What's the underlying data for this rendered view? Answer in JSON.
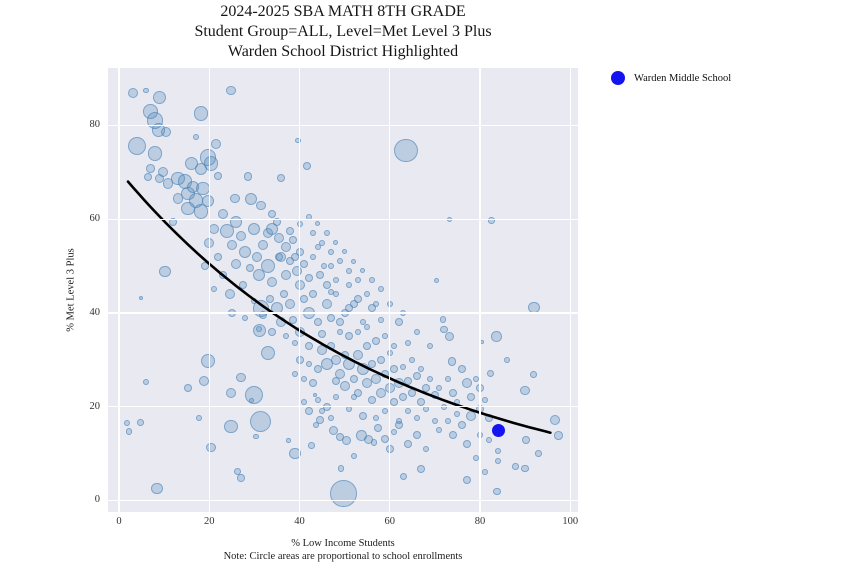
{
  "title": {
    "line1": "2024-2025 SBA MATH 8TH GRADE",
    "line2": "Student Group=ALL, Level=Met Level 3 Plus",
    "line3": "Warden School District Highlighted"
  },
  "legend": {
    "items": [
      {
        "label": "Warden Middle School",
        "color": "#1414f0"
      }
    ]
  },
  "chart_data": {
    "type": "scatter",
    "title": "2024-2025 SBA MATH 8TH GRADE | Student Group=ALL, Level=Met Level 3 Plus | Warden School District Highlighted",
    "xlabel": "% Low Income Students",
    "ylabel": "% Met Level 3 Plus",
    "note": "Note: Circle areas are proportional to school enrollments",
    "xticks": [
      0,
      20,
      40,
      60,
      80,
      100
    ],
    "yticks": [
      0,
      20,
      40,
      60,
      80
    ],
    "xlim": [
      -2.4,
      101.7
    ],
    "ylim": [
      -2.5,
      92.2
    ],
    "grid": true,
    "background": "#e9e9f1",
    "point_color": "#4682b4",
    "legend_position": "outside upper right",
    "highlight": {
      "label": "Warden Middle School",
      "x": 84,
      "y": 15,
      "r": 6.5,
      "color": "#1414f0"
    },
    "trend_line": {
      "type": "exponential",
      "formula": "y = 70.3 * exp(-0.01655 * x)",
      "a": 70.3,
      "b": 0.01655,
      "x_start": 2,
      "x_end": 95.7,
      "color": "#000000",
      "width": 2.6
    },
    "points": [
      [
        3,
        87,
        5
      ],
      [
        6,
        87.5,
        2.7
      ],
      [
        9,
        86,
        6.7
      ],
      [
        7,
        83,
        7.3
      ],
      [
        8,
        81,
        8.3
      ],
      [
        8.7,
        79,
        6.7
      ],
      [
        10.5,
        78.5,
        5
      ],
      [
        4,
        75.7,
        9
      ],
      [
        18.2,
        82.5,
        7.3
      ],
      [
        24.8,
        87.4,
        4.7
      ],
      [
        21.5,
        76,
        5
      ],
      [
        17,
        77.5,
        3
      ],
      [
        39.7,
        76.8,
        2.7
      ],
      [
        63.6,
        74.6,
        11.7
      ],
      [
        8,
        74,
        7.3
      ],
      [
        7,
        70.8,
        4.3
      ],
      [
        6.4,
        69.1,
        4
      ],
      [
        9,
        68.7,
        4.7
      ],
      [
        9.8,
        70.1,
        5
      ],
      [
        10.9,
        67.6,
        5.3
      ],
      [
        13.1,
        68.7,
        6.7
      ],
      [
        14.6,
        68,
        7.3
      ],
      [
        16,
        71.9,
        6.7
      ],
      [
        18.1,
        70.8,
        6
      ],
      [
        20.4,
        71.9,
        7.3
      ],
      [
        19.7,
        73.1,
        8.3
      ],
      [
        16.4,
        66.9,
        6
      ],
      [
        18.6,
        66.5,
        6.7
      ],
      [
        15.3,
        65.5,
        6.7
      ],
      [
        13.1,
        64.4,
        5.3
      ],
      [
        17.1,
        64,
        7.3
      ],
      [
        19.7,
        63.8,
        6
      ],
      [
        15.3,
        62.3,
        6.7
      ],
      [
        18.2,
        61.6,
        7.3
      ],
      [
        22,
        69.3,
        4
      ],
      [
        25.7,
        64.4,
        4.7
      ],
      [
        28.6,
        69.1,
        4.3
      ],
      [
        29.3,
        64.4,
        6
      ],
      [
        31.5,
        62.9,
        4.7
      ],
      [
        36,
        68.7,
        4
      ],
      [
        41.7,
        71.4,
        4
      ],
      [
        23,
        61,
        5
      ],
      [
        26,
        59.5,
        6
      ],
      [
        21,
        58,
        5
      ],
      [
        24,
        57.5,
        7
      ],
      [
        27,
        56.5,
        5
      ],
      [
        12,
        59.5,
        4
      ],
      [
        30,
        58,
        6
      ],
      [
        33,
        57,
        5
      ],
      [
        35,
        59.5,
        4
      ],
      [
        38,
        57.5,
        4
      ],
      [
        40,
        59,
        3
      ],
      [
        42,
        60.5,
        3
      ],
      [
        34,
        61,
        4
      ],
      [
        73.2,
        59.9,
        2.5
      ],
      [
        82.5,
        59.7,
        3.3
      ],
      [
        44,
        59,
        2.5
      ],
      [
        20,
        55,
        5
      ],
      [
        25,
        54.5,
        5
      ],
      [
        28,
        53,
        6
      ],
      [
        22,
        52,
        4
      ],
      [
        30.5,
        52,
        5
      ],
      [
        32,
        54.5,
        5
      ],
      [
        26,
        50.5,
        5
      ],
      [
        29,
        49.5,
        4
      ],
      [
        31,
        48,
        6
      ],
      [
        33,
        50,
        7
      ],
      [
        34,
        46.5,
        5
      ],
      [
        27.5,
        46,
        4
      ],
      [
        24.5,
        44,
        5
      ],
      [
        19,
        50,
        4
      ],
      [
        23,
        48,
        4
      ],
      [
        21,
        45,
        3
      ],
      [
        10.2,
        48.8,
        5.7
      ],
      [
        4.9,
        43.1,
        2
      ],
      [
        34,
        58,
        6
      ],
      [
        35.5,
        56,
        5
      ],
      [
        37,
        54,
        5
      ],
      [
        38.5,
        55.5,
        4
      ],
      [
        36,
        52,
        5
      ],
      [
        38,
        51,
        4
      ],
      [
        40,
        53,
        4
      ],
      [
        39.5,
        49,
        5
      ],
      [
        41,
        50.5,
        4
      ],
      [
        42,
        47.5,
        4
      ],
      [
        43,
        52,
        3
      ],
      [
        44.5,
        48,
        4
      ],
      [
        46,
        46,
        4
      ],
      [
        45.5,
        50,
        3
      ],
      [
        47,
        44.5,
        3
      ],
      [
        48,
        47,
        3
      ],
      [
        49,
        51,
        3
      ],
      [
        51,
        49,
        3
      ],
      [
        53,
        47,
        3
      ],
      [
        45,
        55,
        3
      ],
      [
        47,
        53,
        3
      ],
      [
        43,
        57,
        3
      ],
      [
        46,
        57,
        3
      ],
      [
        48,
        55,
        2.5
      ],
      [
        50,
        53,
        2.5
      ],
      [
        52,
        51,
        2.5
      ],
      [
        54,
        49,
        2.5
      ],
      [
        56,
        47,
        3
      ],
      [
        37,
        48,
        5
      ],
      [
        35.5,
        52,
        4
      ],
      [
        39,
        52,
        4
      ],
      [
        44,
        54,
        3
      ],
      [
        47,
        50,
        3
      ],
      [
        51,
        46,
        3
      ],
      [
        70.3,
        46.9,
        2.7
      ],
      [
        92,
        41.2,
        5.7
      ],
      [
        33.5,
        43,
        4
      ],
      [
        30,
        42.5,
        3
      ],
      [
        35,
        41,
        6
      ],
      [
        36.5,
        44,
        4
      ],
      [
        38,
        42,
        5
      ],
      [
        32,
        39.5,
        4
      ],
      [
        36,
        38,
        5
      ],
      [
        25,
        40,
        4
      ],
      [
        28,
        39,
        3
      ],
      [
        31,
        36.5,
        3
      ],
      [
        34,
        36,
        4
      ],
      [
        37,
        35,
        3
      ],
      [
        39,
        33.5,
        3
      ],
      [
        40,
        36,
        5
      ],
      [
        41,
        43,
        4
      ],
      [
        42,
        40,
        6
      ],
      [
        43,
        44,
        4
      ],
      [
        44,
        38,
        4
      ],
      [
        40,
        46,
        5
      ],
      [
        46,
        42,
        5
      ],
      [
        45,
        35.5,
        4
      ],
      [
        47,
        39,
        4
      ],
      [
        42,
        33,
        4
      ],
      [
        48,
        44,
        3
      ],
      [
        50,
        40,
        4
      ],
      [
        49,
        36,
        3
      ],
      [
        52,
        42,
        4
      ],
      [
        54,
        38,
        3
      ],
      [
        58,
        45,
        3
      ],
      [
        55,
        44,
        3
      ],
      [
        57,
        42,
        3
      ],
      [
        53,
        43,
        4
      ],
      [
        51,
        41,
        4
      ],
      [
        49,
        38,
        4
      ],
      [
        51,
        35,
        4
      ],
      [
        53,
        36,
        3
      ],
      [
        55,
        37,
        3
      ],
      [
        57,
        34,
        4
      ],
      [
        59,
        35,
        3
      ],
      [
        61,
        33,
        3
      ],
      [
        64,
        33.5,
        3
      ],
      [
        58,
        38.5,
        3
      ],
      [
        62,
        38,
        4
      ],
      [
        66,
        36,
        3
      ],
      [
        69,
        33,
        3
      ],
      [
        56,
        41,
        4
      ],
      [
        60,
        42,
        3
      ],
      [
        63,
        40,
        3
      ],
      [
        71.8,
        38.6,
        3.3
      ],
      [
        72,
        36.5,
        3.7
      ],
      [
        73.2,
        35,
        4.7
      ],
      [
        83.6,
        35,
        5.3
      ],
      [
        80.5,
        33.9,
        2
      ],
      [
        38.5,
        38.5,
        4
      ],
      [
        31.5,
        41,
        8.3
      ],
      [
        31.2,
        36.3,
        6.7
      ],
      [
        33,
        31.5,
        7
      ],
      [
        19.7,
        29.8,
        7
      ],
      [
        45,
        32,
        5
      ],
      [
        46,
        29,
        6
      ],
      [
        47,
        33,
        4
      ],
      [
        48,
        30,
        5
      ],
      [
        49,
        27,
        5
      ],
      [
        50,
        31,
        4
      ],
      [
        50,
        24.5,
        5
      ],
      [
        51,
        29,
        6
      ],
      [
        52,
        26,
        4
      ],
      [
        53,
        31,
        5
      ],
      [
        53,
        23,
        4
      ],
      [
        54,
        28,
        6
      ],
      [
        55,
        25,
        5
      ],
      [
        55,
        33,
        4
      ],
      [
        56,
        29,
        4
      ],
      [
        56,
        21.5,
        4
      ],
      [
        57,
        26,
        5
      ],
      [
        58,
        23,
        5
      ],
      [
        58,
        30,
        4
      ],
      [
        59,
        27,
        4
      ],
      [
        60,
        24,
        5
      ],
      [
        60,
        31.5,
        3
      ],
      [
        61,
        21,
        4
      ],
      [
        61,
        28,
        4
      ],
      [
        62,
        25,
        5
      ],
      [
        63,
        22,
        4
      ],
      [
        63,
        28.5,
        3
      ],
      [
        64,
        25.5,
        4
      ],
      [
        65,
        23,
        4
      ],
      [
        65,
        30,
        3
      ],
      [
        66,
        26.5,
        4
      ],
      [
        67,
        21,
        4
      ],
      [
        67,
        28,
        3
      ],
      [
        68,
        24,
        4
      ],
      [
        69,
        26,
        3
      ],
      [
        70,
        22.5,
        4
      ],
      [
        44,
        28,
        4
      ],
      [
        43,
        25,
        4
      ],
      [
        42,
        29,
        3
      ],
      [
        41,
        26,
        3
      ],
      [
        40,
        30,
        4
      ],
      [
        39,
        27,
        3
      ],
      [
        48,
        22,
        3
      ],
      [
        46,
        20,
        4
      ],
      [
        44,
        21.5,
        3
      ],
      [
        42,
        19,
        4
      ],
      [
        71,
        24,
        3
      ],
      [
        73,
        26,
        3
      ],
      [
        74,
        23,
        4
      ],
      [
        75,
        21,
        3
      ],
      [
        48,
        25.5,
        4
      ],
      [
        52,
        22,
        3
      ],
      [
        73.8,
        29.6,
        4.3
      ],
      [
        82.3,
        27.1,
        3.7
      ],
      [
        90,
        23.5,
        4.7
      ],
      [
        91.8,
        26.9,
        3.3
      ],
      [
        86,
        30,
        3
      ],
      [
        29.9,
        22.4,
        9
      ],
      [
        29.3,
        21.3,
        2.7
      ],
      [
        24.8,
        23,
        5
      ],
      [
        18.8,
        25.4,
        5
      ],
      [
        15.3,
        23.9,
        4
      ],
      [
        6,
        25.2,
        3
      ],
      [
        27,
        26.2,
        4.7
      ],
      [
        76,
        28,
        4
      ],
      [
        77,
        25,
        5
      ],
      [
        78,
        22,
        4
      ],
      [
        79,
        26,
        3
      ],
      [
        80,
        24,
        4
      ],
      [
        80,
        19.5,
        4
      ],
      [
        81,
        21.5,
        3
      ],
      [
        82,
        17.5,
        4
      ],
      [
        78,
        18,
        5
      ],
      [
        76,
        16,
        4
      ],
      [
        31.3,
        16.8,
        10.7
      ],
      [
        30.4,
        13.6,
        2.7
      ],
      [
        24.8,
        15.8,
        6.7
      ],
      [
        20.4,
        11.3,
        4.7
      ],
      [
        26.2,
        6.2,
        3.7
      ],
      [
        27,
        4.8,
        3.7
      ],
      [
        8.4,
        2.6,
        5.7
      ],
      [
        1.8,
        16.5,
        3.3
      ],
      [
        2.2,
        14.7,
        3.3
      ],
      [
        4.7,
        16.6,
        3.3
      ],
      [
        49.7,
        1.5,
        13.3
      ],
      [
        49.2,
        6.8,
        3.3
      ],
      [
        39,
        10,
        5.7
      ],
      [
        37.5,
        12.8,
        2.3
      ],
      [
        42.6,
        11.7,
        3.3
      ],
      [
        44.6,
        17.1,
        4
      ],
      [
        43.7,
        16,
        3
      ],
      [
        47.5,
        14.9,
        4.7
      ],
      [
        48.9,
        13.5,
        4
      ],
      [
        53.7,
        13.9,
        5.3
      ],
      [
        55.3,
        13,
        4.7
      ],
      [
        56.5,
        12.3,
        3.3
      ],
      [
        50.3,
        12.8,
        4.5
      ],
      [
        52,
        9.5,
        3
      ],
      [
        67,
        6.8,
        4
      ],
      [
        63,
        5,
        3.5
      ],
      [
        60,
        11,
        4
      ],
      [
        64,
        12,
        4
      ],
      [
        66,
        14,
        4
      ],
      [
        68,
        11,
        3
      ],
      [
        61,
        14.5,
        3
      ],
      [
        59,
        13,
        4
      ],
      [
        57.5,
        15.5,
        4
      ],
      [
        62,
        16,
        4
      ],
      [
        96.7,
        17.1,
        5
      ],
      [
        97.4,
        13.9,
        4.3
      ],
      [
        90.2,
        12.8,
        4
      ],
      [
        92.9,
        10,
        3.3
      ],
      [
        90,
        6.8,
        3.7
      ],
      [
        87.8,
        7.2,
        3.3
      ],
      [
        77.2,
        4.3,
        4
      ],
      [
        83.8,
        1.9,
        3.7
      ],
      [
        74,
        14,
        4
      ],
      [
        77,
        12,
        4
      ],
      [
        80,
        14,
        3
      ],
      [
        82,
        12.8,
        3
      ],
      [
        84,
        10.5,
        3
      ],
      [
        75,
        18.5,
        3
      ],
      [
        73,
        17,
        3
      ],
      [
        71,
        15,
        3
      ],
      [
        79,
        9,
        3
      ],
      [
        81,
        6,
        3
      ],
      [
        84,
        8.5,
        3
      ],
      [
        45,
        19,
        3
      ],
      [
        47,
        17.5,
        3
      ],
      [
        43.5,
        22.5,
        2
      ],
      [
        41,
        21,
        3
      ],
      [
        17.8,
        17.6,
        3
      ],
      [
        54,
        18,
        4
      ],
      [
        57,
        17.5,
        3
      ],
      [
        59,
        19,
        3
      ],
      [
        62,
        17,
        3
      ],
      [
        64,
        19,
        3
      ],
      [
        66,
        17.5,
        3
      ],
      [
        68,
        19.5,
        3
      ],
      [
        70,
        17,
        3
      ],
      [
        72,
        20,
        3
      ],
      [
        51,
        19.5,
        3
      ]
    ]
  }
}
